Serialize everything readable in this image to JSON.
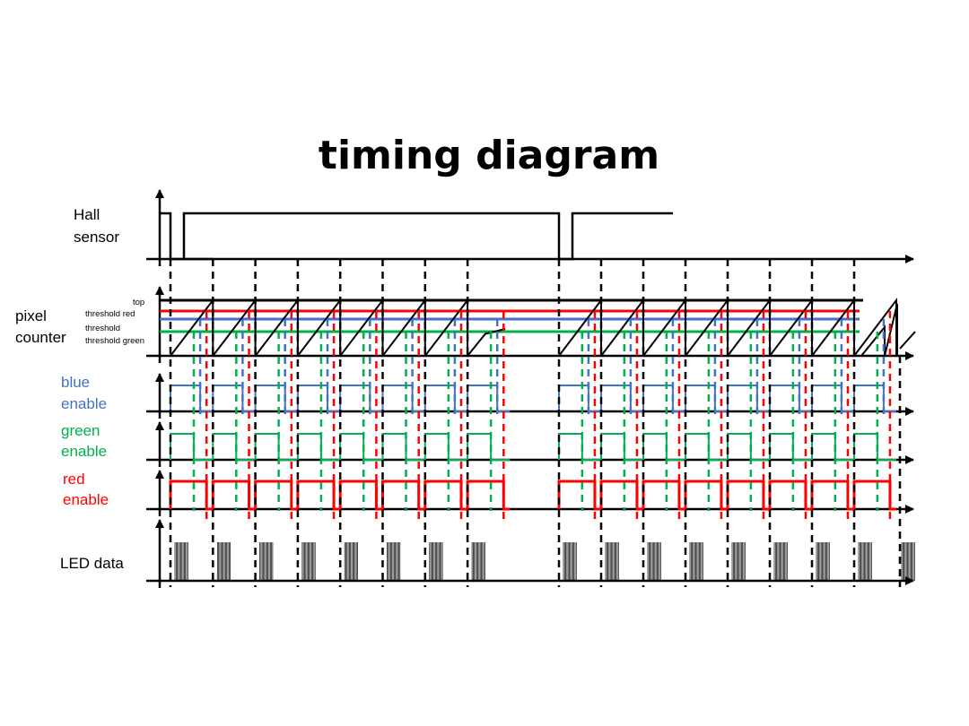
{
  "title": "timing diagram",
  "labels": {
    "hall_line1": "Hall",
    "hall_line2": "sensor",
    "pixel_line1": "pixel",
    "pixel_line2": "counter",
    "top": "top",
    "threshold_red": "threshold red",
    "threshold_blue_line1": "threshold",
    "threshold_green": "threshold green",
    "blue_line1": "blue",
    "blue_line2": "enable",
    "green_line1": "green",
    "green_line2": "enable",
    "red_line1": "red",
    "red_line2": "enable",
    "led": "LED data"
  },
  "colors": {
    "axis": "#000000",
    "red": "#ff0000",
    "blue": "#4472c4",
    "green": "#00b050",
    "text": "#000000"
  },
  "counter_thresholds": {
    "top": 1.0,
    "red": 0.85,
    "blue": 0.7,
    "green": 0.55
  },
  "revolutions": [
    {
      "pixel_periods": 8
    },
    {
      "pixel_periods": 8
    }
  ]
}
